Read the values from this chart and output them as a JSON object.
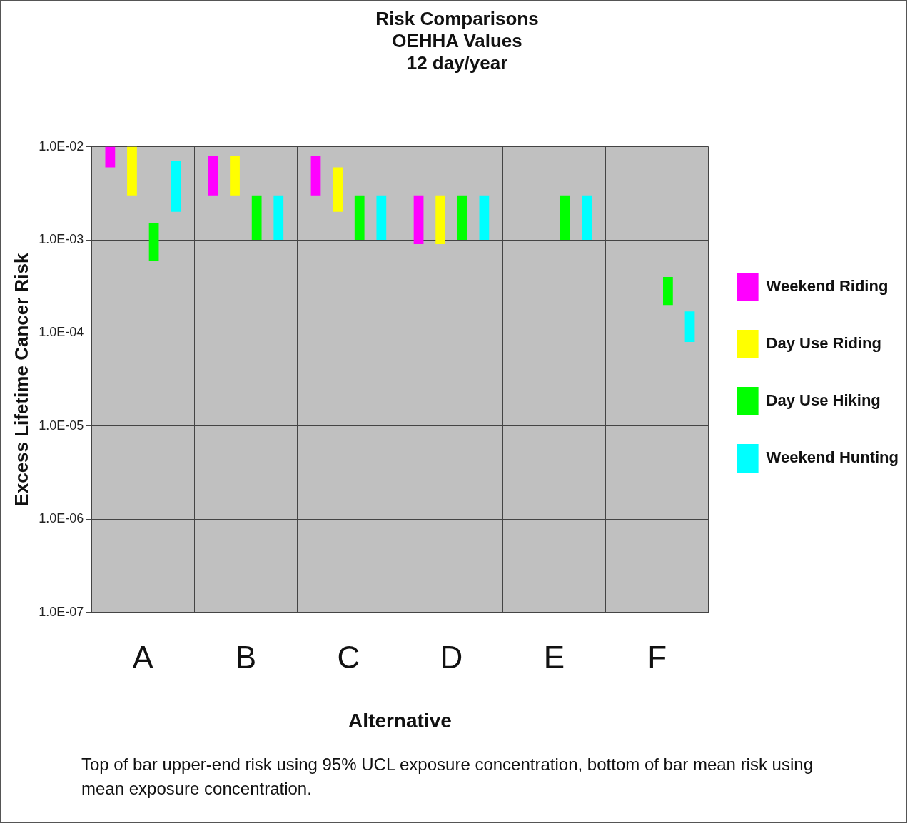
{
  "chart_data": {
    "type": "bar",
    "title": "Risk Comparisons\nOEHHA Values\n12 day/year",
    "xlabel": "Alternative",
    "ylabel": "Excess Lifetime Cancer Risk",
    "categories": [
      "A",
      "B",
      "C",
      "D",
      "E",
      "F"
    ],
    "series": [
      {
        "name": "Weekend Riding",
        "color": "#ff00ff",
        "base": [
          0.006,
          0.003,
          0.003,
          0.0009,
          null,
          null
        ],
        "values": [
          0.004,
          0.005,
          0.005,
          0.0021,
          null,
          null
        ]
      },
      {
        "name": "Day Use Riding",
        "color": "#ffff00",
        "base": [
          0.003,
          0.003,
          0.002,
          0.0009,
          null,
          null
        ],
        "values": [
          0.007,
          0.005,
          0.004,
          0.0021,
          null,
          null
        ]
      },
      {
        "name": "Day Use Hiking",
        "color": "#00ff00",
        "base": [
          0.0006,
          0.001,
          0.001,
          0.001,
          0.001,
          0.0002
        ],
        "values": [
          0.0009,
          0.002,
          0.002,
          0.002,
          0.002,
          0.0002
        ]
      },
      {
        "name": "Weekend Hunting",
        "color": "#00ffff",
        "base": [
          0.002,
          0.001,
          0.001,
          0.001,
          0.001,
          8e-05
        ],
        "values": [
          0.005,
          0.002,
          0.002,
          0.002,
          0.002,
          9e-05
        ]
      }
    ],
    "log": true,
    "ylim": [
      1e-07,
      0.01
    ],
    "yticks": [
      {
        "value": 1e-07,
        "label": "1.0E-07"
      },
      {
        "value": 1e-06,
        "label": "1.0E-06"
      },
      {
        "value": 1e-05,
        "label": "1.0E-05"
      },
      {
        "value": 0.0001,
        "label": "1.0E-04"
      },
      {
        "value": 0.001,
        "label": "1.0E-03"
      },
      {
        "value": 0.01,
        "label": "1.0E-02"
      }
    ],
    "grid": true,
    "legend": "right",
    "annotations": [
      "Top of bar upper-end risk using 95% UCL exposure concentration, bottom of bar mean risk using mean exposure concentration."
    ]
  }
}
